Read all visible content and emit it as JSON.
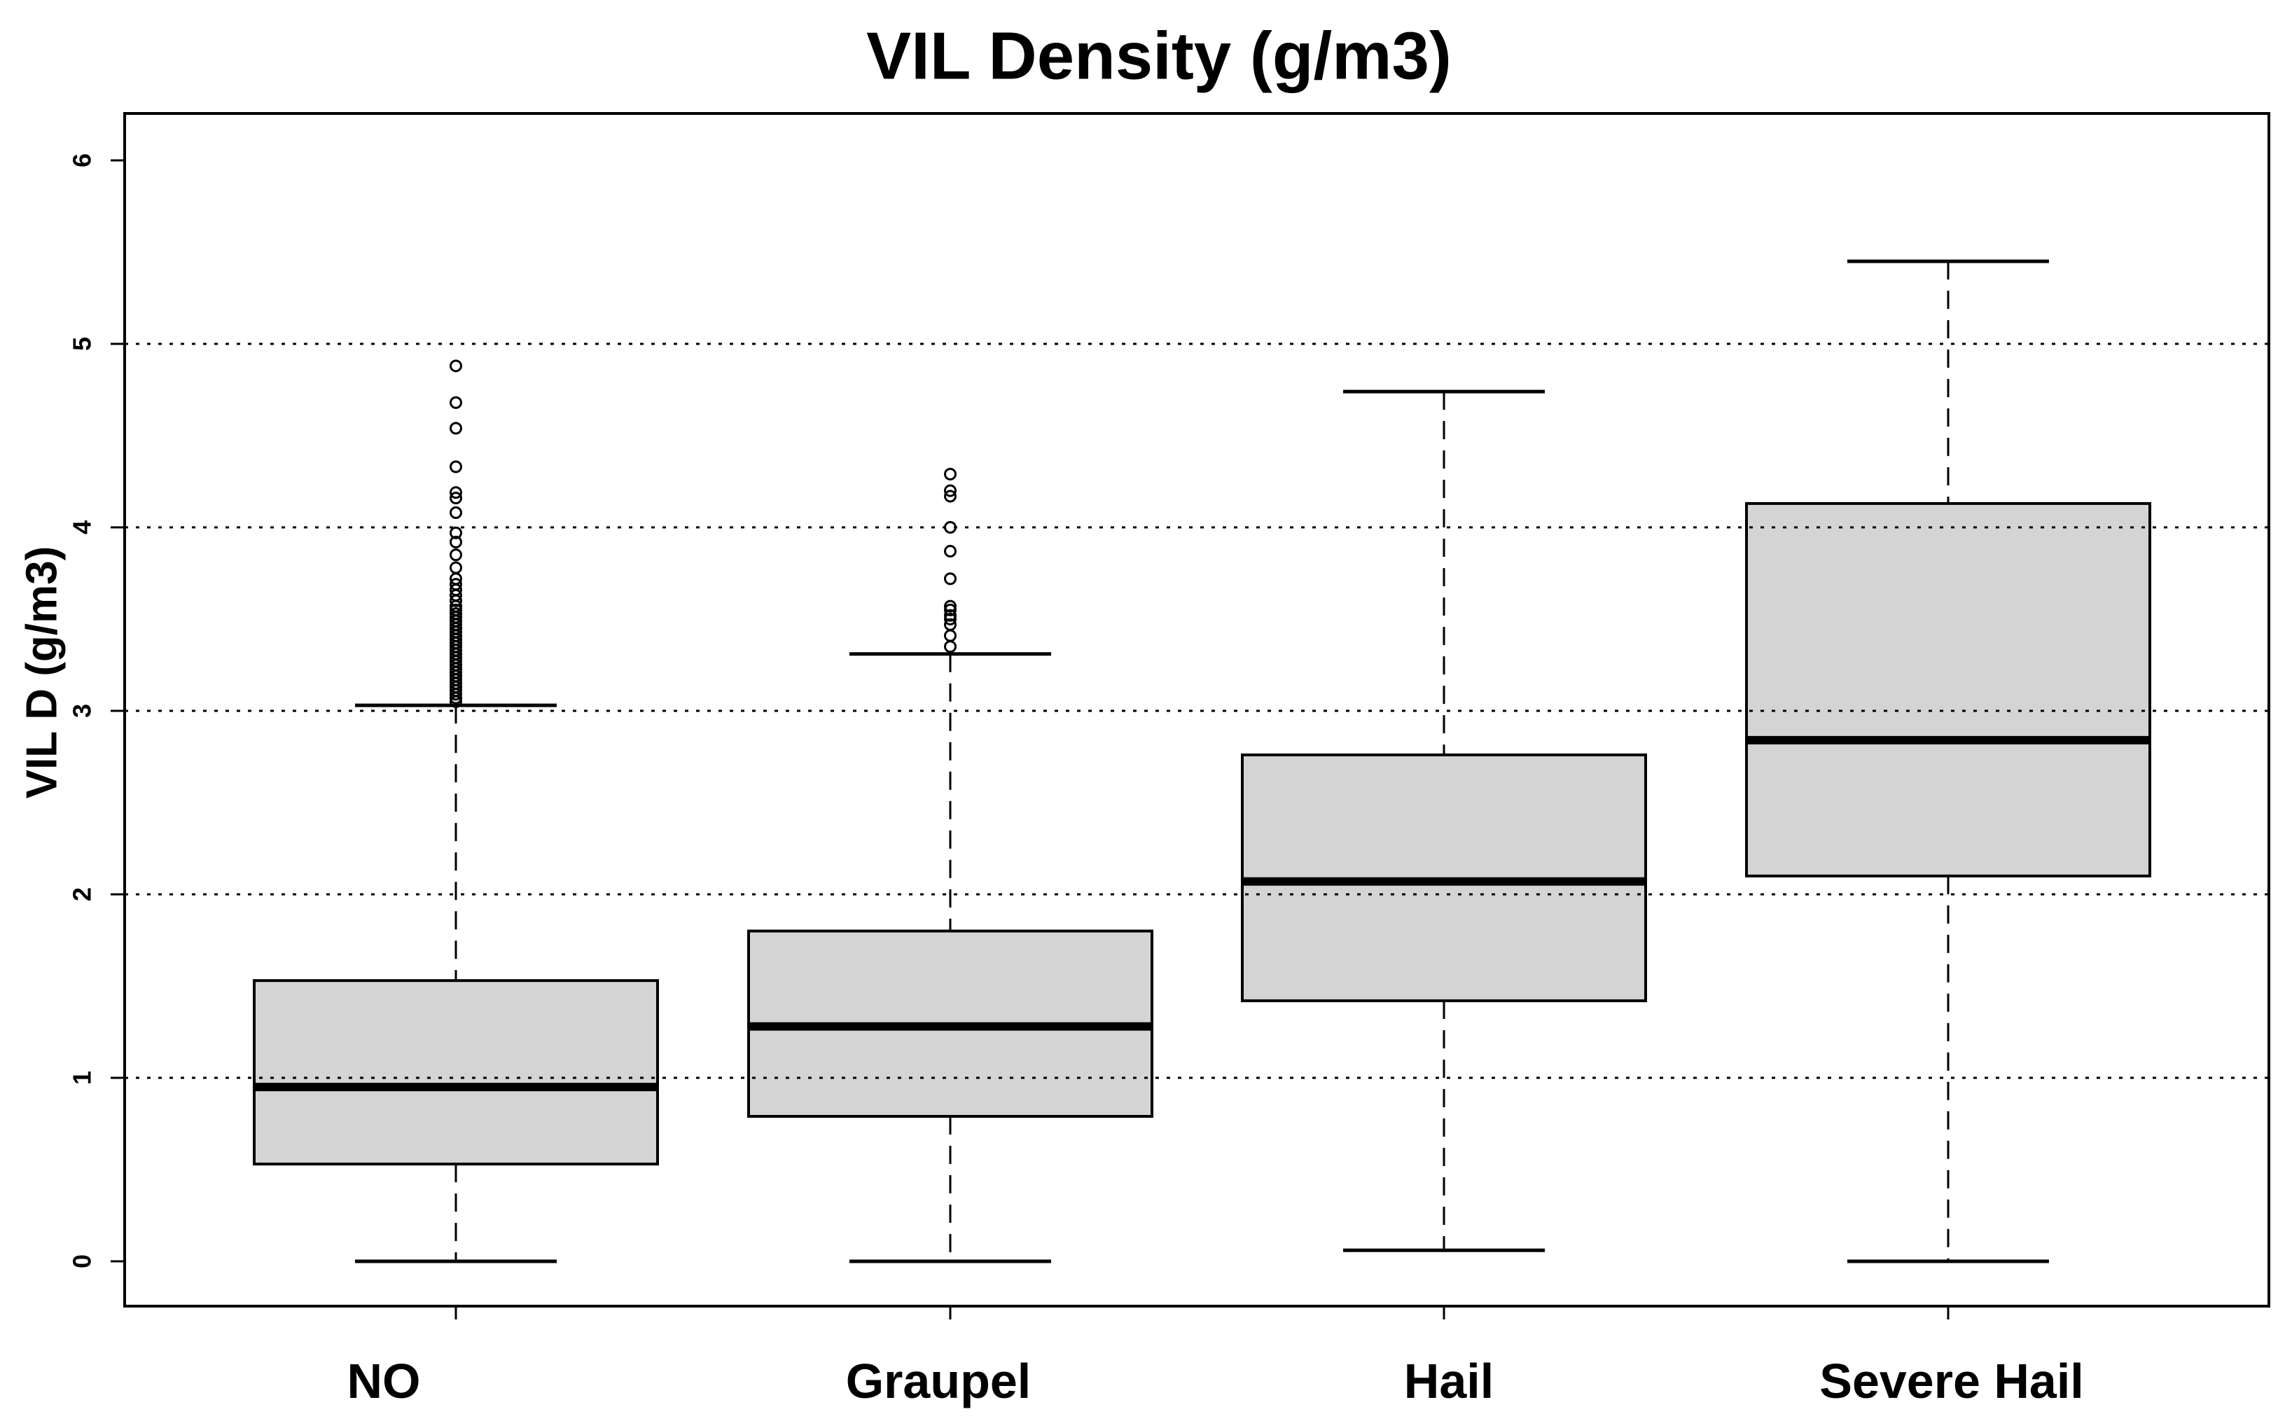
{
  "chart_data": {
    "type": "box",
    "title": "VIL Density (g/m3)",
    "ylabel": "VIL D (g/m3)",
    "xlabel": "",
    "ylim": [
      -0.24,
      6.25
    ],
    "y_ticks": [
      "0",
      "1",
      "2",
      "3",
      "4",
      "5",
      "6"
    ],
    "y_tick_values": [
      0,
      1,
      2,
      3,
      4,
      5,
      6
    ],
    "gridlines_at": [
      1,
      2,
      3,
      4,
      5
    ],
    "grid_style": "dotted",
    "legend_position": "none",
    "categories": [
      "NO",
      "Graupel",
      "Hail",
      "Severe Hail"
    ],
    "series": [
      {
        "name": "NO",
        "whisker_low": 0.0,
        "q1": 0.53,
        "median": 0.95,
        "q3": 1.53,
        "whisker_high": 3.03,
        "outliers": [
          3.05,
          3.07,
          3.09,
          3.11,
          3.13,
          3.15,
          3.17,
          3.19,
          3.21,
          3.23,
          3.25,
          3.27,
          3.29,
          3.31,
          3.33,
          3.35,
          3.37,
          3.39,
          3.41,
          3.43,
          3.45,
          3.47,
          3.49,
          3.51,
          3.53,
          3.55,
          3.57,
          3.6,
          3.63,
          3.66,
          3.69,
          3.72,
          3.78,
          3.85,
          3.92,
          3.97,
          4.08,
          4.16,
          4.19,
          4.33,
          4.54,
          4.68,
          4.88
        ]
      },
      {
        "name": "Graupel",
        "whisker_low": 0.0,
        "q1": 0.79,
        "median": 1.28,
        "q3": 1.8,
        "whisker_high": 3.31,
        "outliers": [
          3.35,
          3.41,
          3.47,
          3.5,
          3.52,
          3.55,
          3.57,
          3.72,
          3.87,
          4.0,
          4.17,
          4.2,
          4.29
        ]
      },
      {
        "name": "Hail",
        "whisker_low": 0.06,
        "q1": 1.42,
        "median": 2.07,
        "q3": 2.76,
        "whisker_high": 4.74,
        "outliers": []
      },
      {
        "name": "Severe Hail",
        "whisker_low": 0.0,
        "q1": 2.1,
        "median": 2.84,
        "q3": 4.13,
        "whisker_high": 5.45,
        "outliers": []
      }
    ],
    "colors": {
      "box_fill": "#d4d4d4",
      "line": "#000000",
      "background": "#ffffff"
    }
  }
}
